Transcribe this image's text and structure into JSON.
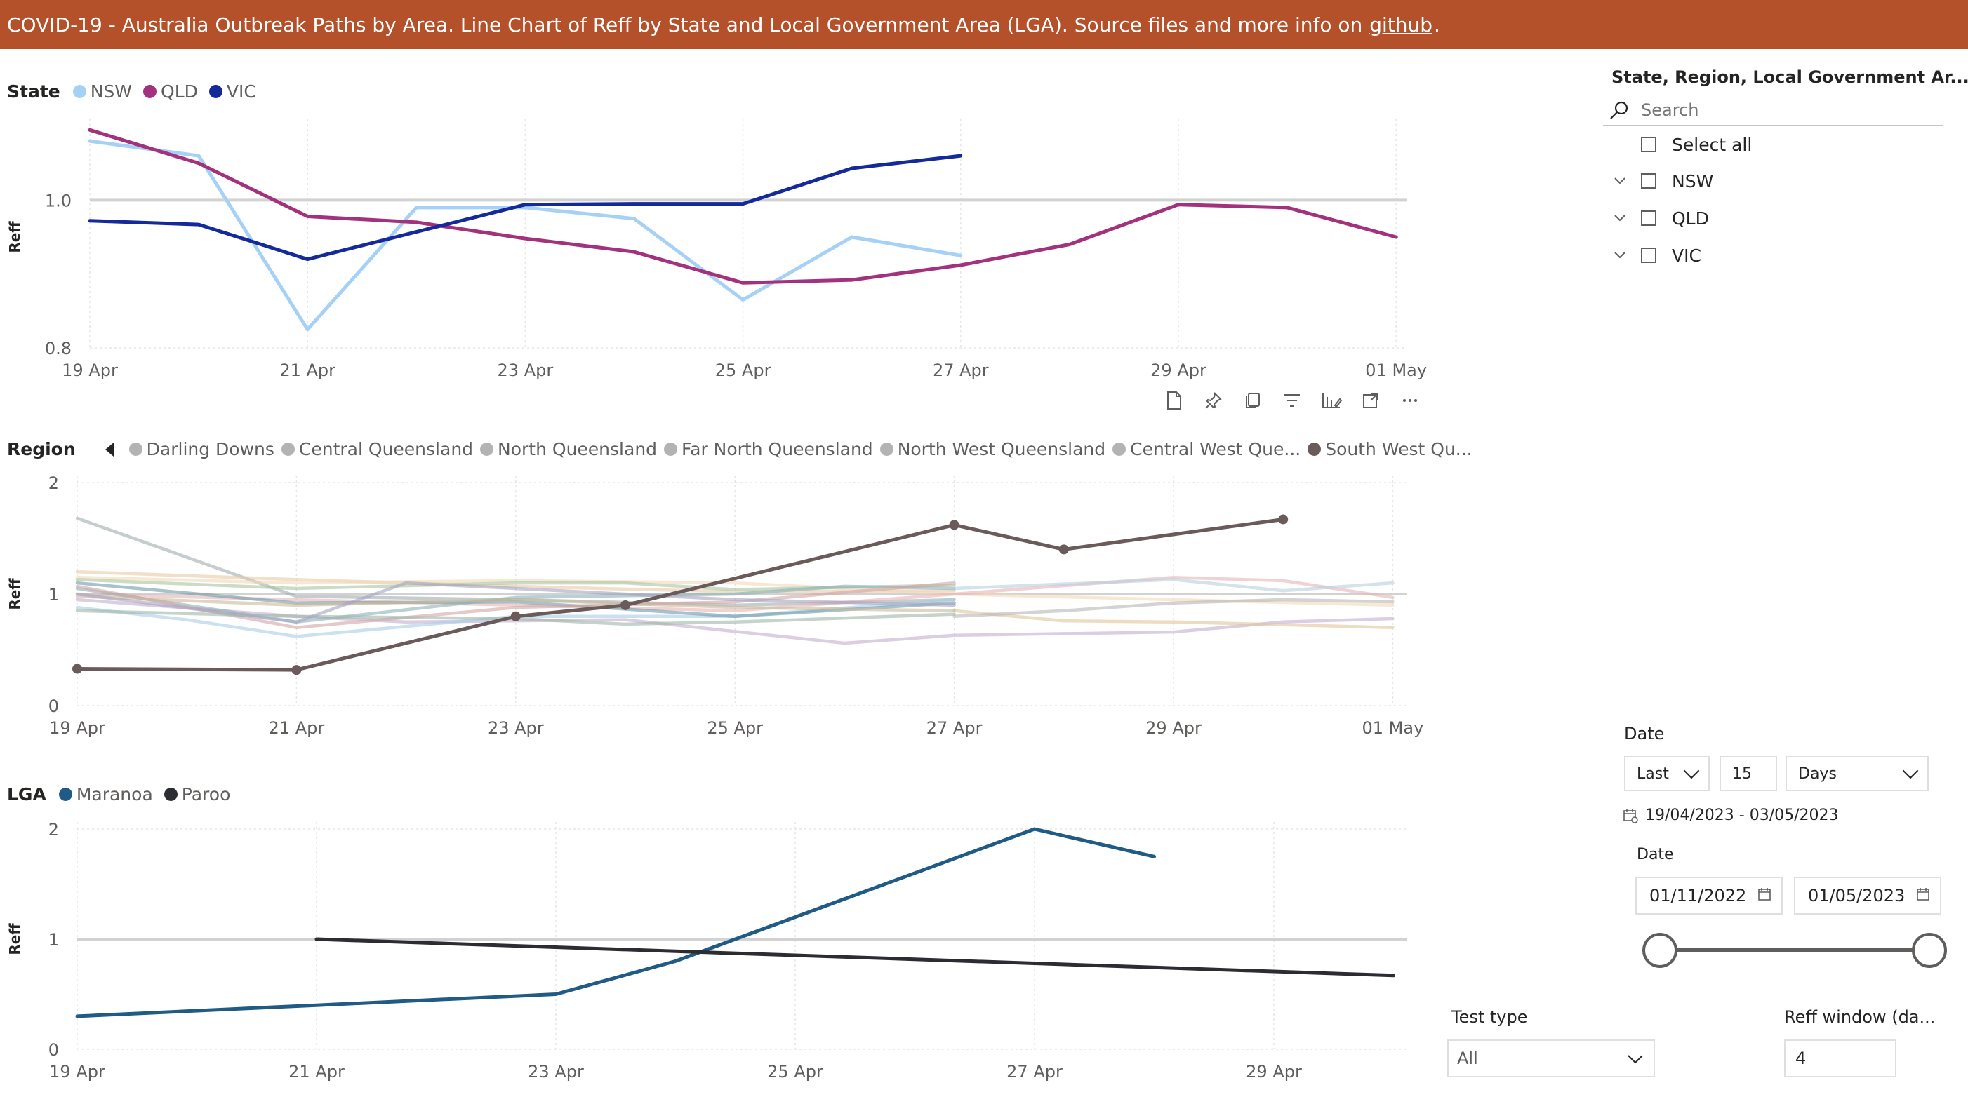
{
  "banner": {
    "text_before": "COVID-19  - Australia Outbreak Paths by Area.  Line Chart of Reff by State and Local Government Area (LGA). Source files and more info on",
    "link": "github",
    "text_after": "."
  },
  "state_legend": {
    "title": "State",
    "items": [
      {
        "label": "NSW",
        "color": "#a6d1f7"
      },
      {
        "label": "QLD",
        "color": "#a3327e"
      },
      {
        "label": "VIC",
        "color": "#14299a"
      }
    ]
  },
  "region_legend": {
    "title": "Region",
    "items": [
      {
        "label": "Darling Downs",
        "color": "#b3b3b3"
      },
      {
        "label": "Central Queensland",
        "color": "#b3b3b3"
      },
      {
        "label": "North Queensland",
        "color": "#b3b3b3"
      },
      {
        "label": "Far North Queensland",
        "color": "#b3b3b3"
      },
      {
        "label": "North West Queensland",
        "color": "#b3b3b3"
      },
      {
        "label": "Central West Que...",
        "color": "#b3b3b3"
      },
      {
        "label": "South West Qu...",
        "color": "#6b5a5a"
      }
    ]
  },
  "lga_legend": {
    "title": "LGA",
    "items": [
      {
        "label": "Maranoa",
        "color": "#1f5b85"
      },
      {
        "label": "Paroo",
        "color": "#2b2d33"
      }
    ]
  },
  "toolbar_icons": [
    "page-icon",
    "pin-icon",
    "copy-icon",
    "filter-icon",
    "format-icon",
    "focus-icon",
    "more-icon"
  ],
  "chart_data": [
    {
      "type": "line",
      "title": "State",
      "ylabel": "Reff",
      "x_ticks": [
        "19 Apr",
        "21 Apr",
        "23 Apr",
        "25 Apr",
        "27 Apr",
        "29 Apr",
        "01 May"
      ],
      "y_ticks": [
        "0.8",
        "1.0"
      ],
      "ylim": [
        0.8,
        1.1
      ],
      "reference_line": 1.0,
      "series": [
        {
          "name": "NSW",
          "color": "#a6d1f7",
          "x": [
            "2023-04-19",
            "2023-04-20",
            "2023-04-21",
            "2023-04-22",
            "2023-04-23",
            "2023-04-24",
            "2023-04-25",
            "2023-04-26",
            "2023-04-27"
          ],
          "values": [
            1.08,
            1.06,
            0.825,
            0.99,
            0.99,
            0.975,
            0.865,
            0.95,
            0.925
          ]
        },
        {
          "name": "QLD",
          "color": "#a3327e",
          "x": [
            "2023-04-19",
            "2023-04-20",
            "2023-04-21",
            "2023-04-22",
            "2023-04-23",
            "2023-04-24",
            "2023-04-25",
            "2023-04-26",
            "2023-04-27",
            "2023-04-28",
            "2023-04-29",
            "2023-04-30",
            "2023-05-01"
          ],
          "values": [
            1.095,
            1.05,
            0.978,
            0.97,
            0.948,
            0.93,
            0.888,
            0.892,
            0.912,
            0.94,
            0.994,
            0.99,
            0.95
          ]
        },
        {
          "name": "VIC",
          "color": "#14299a",
          "x": [
            "2023-04-19",
            "2023-04-20",
            "2023-04-21",
            "2023-04-22",
            "2023-04-23",
            "2023-04-24",
            "2023-04-25",
            "2023-04-26",
            "2023-04-27"
          ],
          "values": [
            0.972,
            0.967,
            0.92,
            0.957,
            0.994,
            0.995,
            0.995,
            1.043,
            1.06
          ]
        }
      ]
    },
    {
      "type": "line",
      "title": "Region",
      "ylabel": "Reff",
      "x_ticks": [
        "19 Apr",
        "21 Apr",
        "23 Apr",
        "25 Apr",
        "27 Apr",
        "29 Apr",
        "01 May"
      ],
      "y_ticks": [
        "0",
        "1",
        "2"
      ],
      "ylim": [
        0,
        2
      ],
      "reference_line": 1,
      "highlighted_series": {
        "name": "South West Qu...",
        "color": "#6b5a5a",
        "x": [
          "2023-04-19",
          "2023-04-21",
          "2023-04-23",
          "2023-04-24",
          "2023-04-27",
          "2023-04-28",
          "2023-04-30"
        ],
        "values": [
          0.33,
          0.32,
          0.8,
          0.9,
          1.62,
          1.4,
          1.67
        ]
      },
      "background_series": [
        {
          "color": "#9eabad",
          "x": [
            "2023-04-19",
            "2023-04-21",
            "2023-04-23",
            "2023-04-25",
            "2023-04-27"
          ],
          "values": [
            1.68,
            0.98,
            0.95,
            0.9,
            0.95
          ]
        },
        {
          "color": "#e8c9a6",
          "x": [
            "2023-04-19",
            "2023-04-21",
            "2023-04-23",
            "2023-04-25",
            "2023-04-27"
          ],
          "values": [
            1.2,
            1.13,
            1.07,
            1.02,
            1.03
          ]
        },
        {
          "color": "#f0d9b5",
          "x": [
            "2023-04-19",
            "2023-04-21",
            "2023-04-23",
            "2023-04-25",
            "2023-04-27",
            "2023-04-29",
            "2023-05-01"
          ],
          "values": [
            1.15,
            1.1,
            1.12,
            1.1,
            1.0,
            0.95,
            0.9
          ]
        },
        {
          "color": "#a8c5a0",
          "x": [
            "2023-04-19",
            "2023-04-21",
            "2023-04-23",
            "2023-04-24",
            "2023-04-25",
            "2023-04-27"
          ],
          "values": [
            1.13,
            1.05,
            1.1,
            1.1,
            1.04,
            1.08
          ]
        },
        {
          "color": "#c3aed1",
          "x": [
            "2023-04-19",
            "2023-04-21",
            "2023-04-22",
            "2023-04-24",
            "2023-04-26",
            "2023-04-27",
            "2023-04-29",
            "2023-04-30",
            "2023-05-01"
          ],
          "values": [
            0.95,
            0.8,
            0.75,
            0.77,
            0.56,
            0.63,
            0.66,
            0.75,
            0.78
          ]
        },
        {
          "color": "#e8b4b8",
          "x": [
            "2023-04-19",
            "2023-04-21",
            "2023-04-23",
            "2023-04-25",
            "2023-04-27",
            "2023-04-29",
            "2023-04-30",
            "2023-05-01"
          ],
          "values": [
            1.0,
            0.95,
            0.9,
            0.85,
            1.0,
            1.15,
            1.12,
            0.97
          ]
        },
        {
          "color": "#a9cde8",
          "x": [
            "2023-04-19",
            "2023-04-20",
            "2023-04-21",
            "2023-04-23",
            "2023-04-25",
            "2023-04-27"
          ],
          "values": [
            0.88,
            0.77,
            0.62,
            0.8,
            0.8,
            0.95
          ]
        },
        {
          "color": "#6e9aa8",
          "x": [
            "2023-04-19",
            "2023-04-21",
            "2023-04-23",
            "2023-04-25",
            "2023-04-27"
          ],
          "values": [
            1.1,
            0.92,
            0.93,
            0.8,
            0.92
          ]
        },
        {
          "color": "#8ab0b8",
          "x": [
            "2023-04-19",
            "2023-04-21",
            "2023-04-23",
            "2023-04-25",
            "2023-04-26",
            "2023-04-27"
          ],
          "values": [
            1.05,
            0.75,
            0.97,
            1.0,
            1.07,
            1.05
          ]
        },
        {
          "color": "#d4a5a5",
          "x": [
            "2023-04-19",
            "2023-04-21",
            "2023-04-23",
            "2023-04-25",
            "2023-04-27"
          ],
          "values": [
            1.07,
            0.7,
            0.88,
            0.93,
            1.1
          ]
        },
        {
          "color": "#b8cfe0",
          "x": [
            "2023-04-27",
            "2023-04-29",
            "2023-04-30",
            "2023-05-01"
          ],
          "values": [
            1.05,
            1.13,
            1.03,
            1.1
          ]
        },
        {
          "color": "#e0c49a",
          "x": [
            "2023-04-27",
            "2023-04-28",
            "2023-04-29",
            "2023-05-01"
          ],
          "values": [
            0.85,
            0.76,
            0.75,
            0.7
          ]
        },
        {
          "color": "#b5b5b5",
          "x": [
            "2023-04-27",
            "2023-04-28",
            "2023-04-29",
            "2023-04-30",
            "2023-05-01"
          ],
          "values": [
            0.8,
            0.85,
            0.92,
            0.95,
            0.93
          ]
        },
        {
          "color": "#c9b99a",
          "x": [
            "2023-04-19",
            "2023-04-21",
            "2023-04-23",
            "2023-04-25",
            "2023-04-27"
          ],
          "values": [
            0.98,
            0.9,
            0.95,
            0.88,
            0.85
          ]
        },
        {
          "color": "#9fb8a6",
          "x": [
            "2023-04-19",
            "2023-04-21",
            "2023-04-23",
            "2023-04-24",
            "2023-04-25",
            "2023-04-27"
          ],
          "values": [
            0.85,
            0.8,
            0.78,
            0.73,
            0.75,
            0.82
          ]
        },
        {
          "color": "#a3a3c2",
          "x": [
            "2023-04-19",
            "2023-04-21",
            "2023-04-22",
            "2023-04-23",
            "2023-04-25",
            "2023-04-27"
          ],
          "values": [
            1.0,
            0.75,
            1.1,
            1.05,
            0.95,
            0.9
          ]
        }
      ]
    },
    {
      "type": "line",
      "title": "LGA",
      "ylabel": "Reff",
      "x_ticks": [
        "19 Apr",
        "21 Apr",
        "23 Apr",
        "25 Apr",
        "27 Apr",
        "29 Apr"
      ],
      "y_ticks": [
        "0",
        "1",
        "2"
      ],
      "ylim": [
        0,
        2
      ],
      "reference_line": 1,
      "series": [
        {
          "name": "Maranoa",
          "color": "#1f5b85",
          "x": [
            "2023-04-19",
            "2023-04-21",
            "2023-04-23",
            "2023-04-24",
            "2023-04-27",
            "2023-04-28"
          ],
          "values": [
            0.3,
            0.4,
            0.5,
            0.8,
            2.0,
            1.75
          ]
        },
        {
          "name": "Paroo",
          "color": "#2b2d33",
          "x": [
            "2023-04-21",
            "2023-04-30"
          ],
          "values": [
            1.0,
            0.67
          ]
        }
      ]
    }
  ],
  "slicer": {
    "title": "State, Region, Local Government Ar...",
    "search_placeholder": "Search",
    "select_all": "Select all",
    "items": [
      "NSW",
      "QLD",
      "VIC"
    ]
  },
  "date_filter": {
    "title": "Date",
    "mode": "Last",
    "count": "15",
    "unit": "Days",
    "range": "19/04/2023 - 03/05/2023"
  },
  "date_range": {
    "title": "Date",
    "start": "01/11/2022",
    "end": "01/05/2023"
  },
  "test_type": {
    "title": "Test type",
    "value": "All"
  },
  "reff_window": {
    "title": "Reff window (da...",
    "value": "4"
  }
}
